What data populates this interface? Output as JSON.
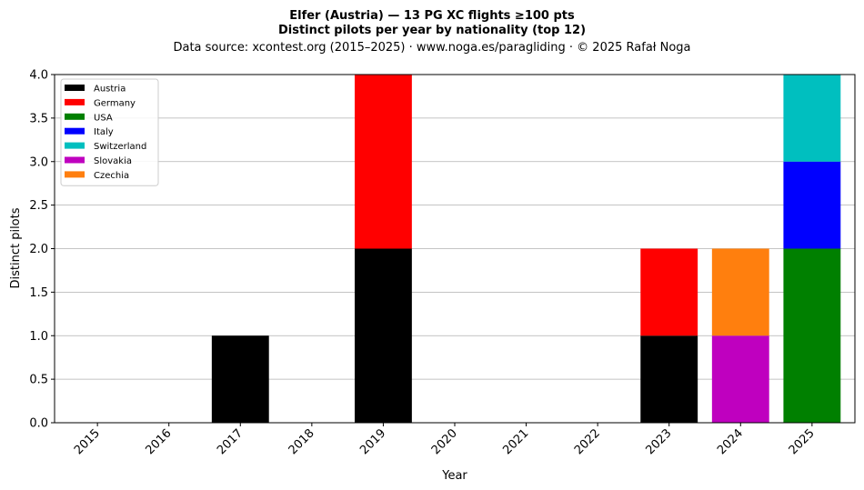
{
  "chart_data": {
    "type": "bar",
    "stacked": true,
    "title_lines": [
      "Elfer (Austria)  —  13 PG XC flights ≥100 pts",
      "Distinct pilots per year by nationality (top 12)"
    ],
    "subtitle": "Data source: xcontest.org (2015–2025)  ·  www.noga.es/paragliding  ·  © 2025 Rafał Noga",
    "xlabel": "Year",
    "ylabel": "Distinct pilots",
    "ylim": [
      0,
      4
    ],
    "yticks": [
      "0.0",
      "0.5",
      "1.0",
      "1.5",
      "2.0",
      "2.5",
      "3.0",
      "3.5",
      "4.0"
    ],
    "grid": "horizontal",
    "legend_position": "top-left",
    "categories": [
      "2015",
      "2016",
      "2017",
      "2018",
      "2019",
      "2020",
      "2021",
      "2022",
      "2023",
      "2024",
      "2025"
    ],
    "series": [
      {
        "name": "Austria",
        "color": "#000000",
        "values": [
          0,
          0,
          1,
          0,
          2,
          0,
          0,
          0,
          1,
          0,
          0
        ]
      },
      {
        "name": "Germany",
        "color": "#ff0000",
        "values": [
          0,
          0,
          0,
          0,
          2,
          0,
          0,
          0,
          1,
          0,
          0
        ]
      },
      {
        "name": "USA",
        "color": "#008000",
        "values": [
          0,
          0,
          0,
          0,
          0,
          0,
          0,
          0,
          0,
          0,
          2
        ]
      },
      {
        "name": "Italy",
        "color": "#0000ff",
        "values": [
          0,
          0,
          0,
          0,
          0,
          0,
          0,
          0,
          0,
          0,
          1
        ]
      },
      {
        "name": "Switzerland",
        "color": "#00bfbf",
        "values": [
          0,
          0,
          0,
          0,
          0,
          0,
          0,
          0,
          0,
          0,
          1
        ]
      },
      {
        "name": "Slovakia",
        "color": "#bf00bf",
        "values": [
          0,
          0,
          0,
          0,
          0,
          0,
          0,
          0,
          0,
          1,
          0
        ]
      },
      {
        "name": "Czechia",
        "color": "#ff7f0e",
        "values": [
          0,
          0,
          0,
          0,
          0,
          0,
          0,
          0,
          0,
          1,
          0
        ]
      }
    ]
  }
}
